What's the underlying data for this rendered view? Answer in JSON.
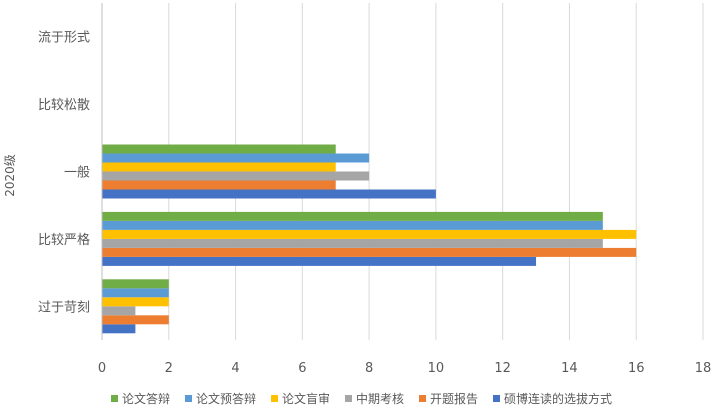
{
  "chart_data": {
    "type": "bar",
    "orientation": "horizontal",
    "ylabel": "2020级",
    "categories": [
      "过于苛刻",
      "比较严格",
      "一般",
      "比较松散",
      "流于形式"
    ],
    "xlim": [
      0,
      18
    ],
    "xticks": [
      0,
      2,
      4,
      6,
      8,
      10,
      12,
      14,
      16,
      18
    ],
    "grid": true,
    "legend_position": "bottom",
    "series": [
      {
        "name": "硕博连读的选拔方式",
        "color": "#4472C4",
        "values": [
          1,
          13,
          10,
          0,
          0
        ]
      },
      {
        "name": "开题报告",
        "color": "#ED7D31",
        "values": [
          2,
          16,
          7,
          0,
          0
        ]
      },
      {
        "name": "中期考核",
        "color": "#A5A5A5",
        "values": [
          1,
          15,
          8,
          0,
          0
        ]
      },
      {
        "name": "论文盲审",
        "color": "#FFC000",
        "values": [
          2,
          16,
          7,
          0,
          0
        ]
      },
      {
        "name": "论文预答辩",
        "color": "#5B9BD5",
        "values": [
          2,
          15,
          8,
          0,
          0
        ]
      },
      {
        "name": "论文答辩",
        "color": "#70AD47",
        "values": [
          2,
          15,
          7,
          0,
          0
        ]
      }
    ],
    "legend_order": [
      "论文答辩",
      "论文预答辩",
      "论文盲审",
      "中期考核",
      "开题报告",
      "硕博连读的选拔方式"
    ]
  }
}
